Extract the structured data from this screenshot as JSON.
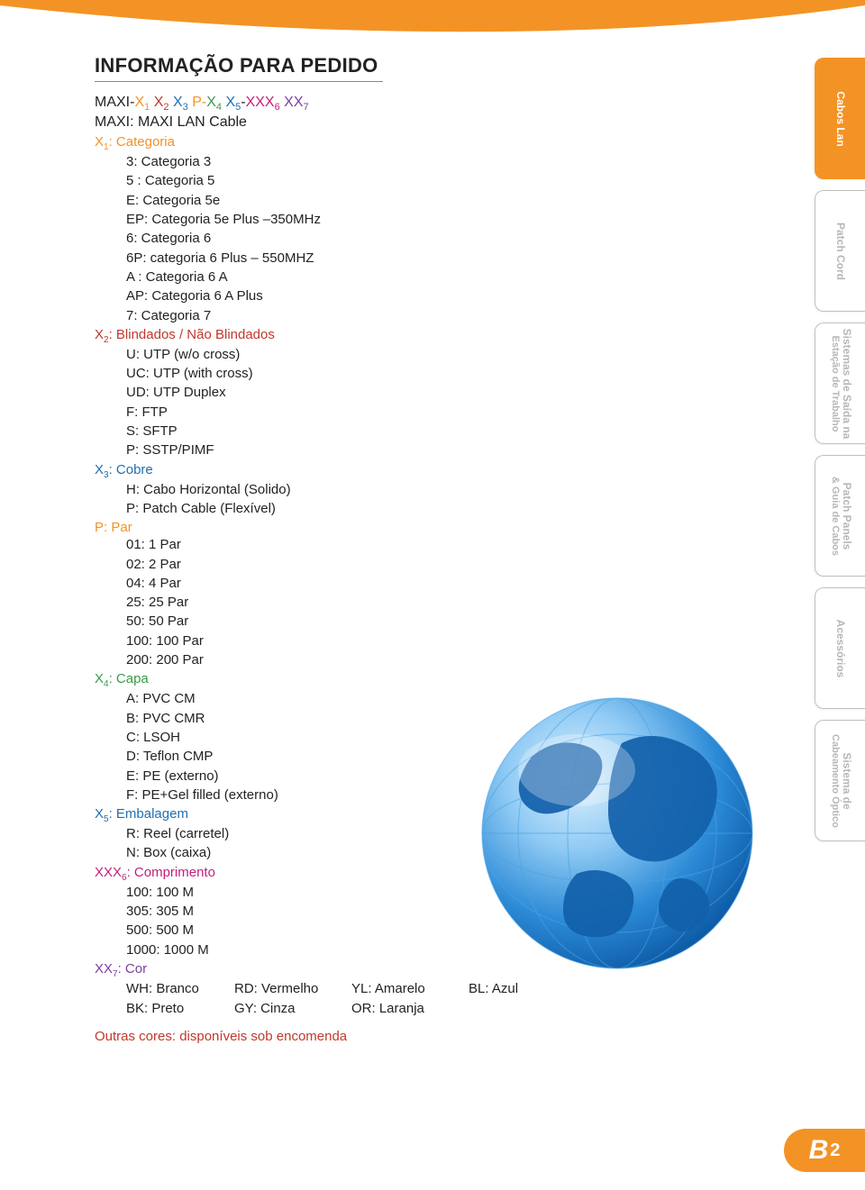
{
  "colors": {
    "orange": "#f39325",
    "red": "#c0392b",
    "green": "#3a9b4a",
    "blue": "#1f6fb2",
    "magenta": "#c2207a",
    "purple": "#7a3fa0",
    "text": "#222222",
    "tab_inactive_text": "#b7b7b7",
    "tab_border": "#c0c0c0",
    "title_underline": "#888888",
    "globe_light": "#8fcaf4",
    "globe_dark": "#0d5aa6",
    "grid_line": "#bfe2f5"
  },
  "title": "INFORMAÇÃO PARA PEDIDO",
  "formula": {
    "parts": [
      {
        "text": "MAXI-",
        "color": "#222222"
      },
      {
        "text": "X",
        "sub": "1",
        "color": "#f39325"
      },
      {
        "text": " "
      },
      {
        "text": "X",
        "sub": "2",
        "color": "#c0392b"
      },
      {
        "text": " "
      },
      {
        "text": "X",
        "sub": "3",
        "color": "#1f6fb2"
      },
      {
        "text": " P-",
        "color": "#f39325"
      },
      {
        "text": "X",
        "sub": "4",
        "color": "#3a9b4a"
      },
      {
        "text": " "
      },
      {
        "text": "X",
        "sub": "5",
        "color": "#1f6fb2"
      },
      {
        "text": "-",
        "color": "#222222"
      },
      {
        "text": "XXX",
        "sub": "6",
        "color": "#c2207a"
      },
      {
        "text": " "
      },
      {
        "text": "XX",
        "sub": "7",
        "color": "#7a3fa0"
      }
    ],
    "subline": "MAXI: MAXI LAN Cable"
  },
  "sections": [
    {
      "head_prefix": "X",
      "head_sub": "1",
      "head_rest": ": Categoria",
      "color": "#f39325",
      "items": [
        "3: Categoria  3",
        "5 : Categoria 5",
        "E: Categoria 5e",
        "EP: Categoria 5e Plus –350MHz",
        "6: Categoria 6",
        "6P: categoria 6 Plus – 550MHZ",
        "A : Categoria 6 A",
        "AP: Categoria 6 A Plus",
        "7: Categoria 7"
      ]
    },
    {
      "head_prefix": "X",
      "head_sub": "2",
      "head_rest": ": Blindados / Não Blindados",
      "color": "#c0392b",
      "items": [
        "U: UTP (w/o cross)",
        "UC: UTP (with cross)",
        "UD: UTP Duplex",
        "F: FTP",
        "S: SFTP",
        "P: SSTP/PIMF"
      ]
    },
    {
      "head_prefix": "X",
      "head_sub": "3",
      "head_rest": ": Cobre",
      "color": "#1f6fb2",
      "items": [
        "H: Cabo Horizontal (Solido)",
        "P: Patch Cable (Flexível)"
      ]
    },
    {
      "head_prefix": "P",
      "head_sub": "",
      "head_rest": ": Par",
      "color": "#f39325",
      "items": [
        "01: 1 Par",
        "02: 2 Par",
        "04: 4 Par",
        "25: 25 Par",
        "50: 50 Par",
        "100: 100 Par",
        "200: 200 Par"
      ]
    },
    {
      "head_prefix": "X",
      "head_sub": "4",
      "head_rest": ": Capa",
      "color": "#3a9b4a",
      "items": [
        "A: PVC CM",
        "B: PVC CMR",
        "C: LSOH",
        "D: Teflon CMP",
        "E: PE (externo)",
        "F: PE+Gel filled (externo)"
      ]
    },
    {
      "head_prefix": "X",
      "head_sub": "5",
      "head_rest": ": Embalagem",
      "color": "#1f6fb2",
      "items": [
        "R: Reel (carretel)",
        "N: Box (caixa)"
      ]
    },
    {
      "head_prefix": "XXX",
      "head_sub": "6",
      "head_rest": ": Comprimento",
      "color": "#c2207a",
      "items": [
        "100: 100 M",
        "305: 305 M",
        "500: 500 M",
        "1000: 1000 M"
      ]
    },
    {
      "head_prefix": "XX",
      "head_sub": "7",
      "head_rest": ": Cor",
      "color": "#7a3fa0",
      "color_grid": [
        [
          "WH: Branco",
          "RD: Vermelho",
          "YL: Amarelo",
          "BL: Azul"
        ],
        [
          "BK: Preto",
          "GY: Cinza",
          "OR: Laranja",
          ""
        ]
      ]
    }
  ],
  "footnote": {
    "text": "Outras cores: disponíveis sob encomenda",
    "color": "#c0392b"
  },
  "tabs": [
    {
      "label": "Cabos Lan",
      "active": true
    },
    {
      "label": "Patch Cord",
      "active": false
    },
    {
      "label": "Sistemas de Saída na",
      "label2": "Estação de Trabalho",
      "active": false
    },
    {
      "label": "Patch Panels",
      "label2": "& Guia de Cabos",
      "active": false
    },
    {
      "label": "Acessórios",
      "active": false
    },
    {
      "label": "Sistema de",
      "label2": "Cabeamento Óptico",
      "active": false
    }
  ],
  "page_badge": {
    "letter": "B",
    "number": "2"
  }
}
